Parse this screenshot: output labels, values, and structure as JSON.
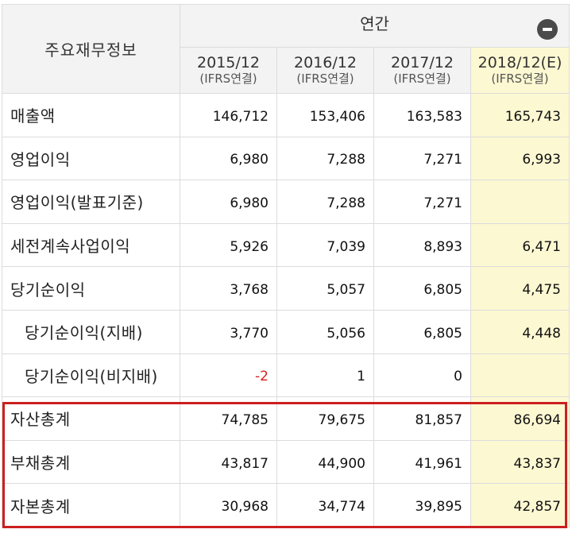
{
  "table": {
    "header_label": "주요재무정보",
    "annual_label": "연간",
    "periods": [
      {
        "date": "2015/12",
        "basis": "(IFRS연결)"
      },
      {
        "date": "2016/12",
        "basis": "(IFRS연결)"
      },
      {
        "date": "2017/12",
        "basis": "(IFRS연결)"
      },
      {
        "date": "2018/12(E)",
        "basis": "(IFRS연결)"
      }
    ],
    "rows": [
      {
        "label": "매출액",
        "values": [
          "146,712",
          "153,406",
          "163,583",
          "165,743"
        ]
      },
      {
        "label": "영업이익",
        "values": [
          "6,980",
          "7,288",
          "7,271",
          "6,993"
        ]
      },
      {
        "label": "영업이익(발표기준)",
        "values": [
          "6,980",
          "7,288",
          "7,271",
          ""
        ]
      },
      {
        "label": "세전계속사업이익",
        "values": [
          "5,926",
          "7,039",
          "8,893",
          "6,471"
        ]
      },
      {
        "label": "당기순이익",
        "values": [
          "3,768",
          "5,057",
          "6,805",
          "4,475"
        ]
      },
      {
        "label": "당기순이익(지배)",
        "values": [
          "3,770",
          "5,056",
          "6,805",
          "4,448"
        ]
      },
      {
        "label": "당기순이익(비지배)",
        "values": [
          "-2",
          "1",
          "0",
          ""
        ]
      },
      {
        "label": "자산총계",
        "values": [
          "74,785",
          "79,675",
          "81,857",
          "86,694"
        ]
      },
      {
        "label": "부채총계",
        "values": [
          "43,817",
          "44,900",
          "41,961",
          "43,837"
        ]
      },
      {
        "label": "자본총계",
        "values": [
          "30,968",
          "34,774",
          "39,895",
          "42,857"
        ]
      }
    ]
  },
  "colors": {
    "estimate_column_bg": "#fcf8d2",
    "highlight_border": "#cc1f1f",
    "negative_text": "#d52020",
    "header_bg": "#f3f3f3"
  },
  "icons": {
    "collapse": "minus-circle-icon"
  }
}
